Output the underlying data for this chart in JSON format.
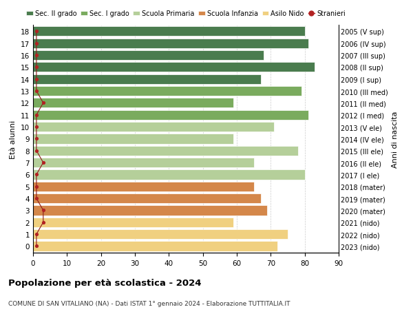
{
  "ages": [
    18,
    17,
    16,
    15,
    14,
    13,
    12,
    11,
    10,
    9,
    8,
    7,
    6,
    5,
    4,
    3,
    2,
    1,
    0
  ],
  "years": [
    "2005 (V sup)",
    "2006 (IV sup)",
    "2007 (III sup)",
    "2008 (II sup)",
    "2009 (I sup)",
    "2010 (III med)",
    "2011 (II med)",
    "2012 (I med)",
    "2013 (V ele)",
    "2014 (IV ele)",
    "2015 (III ele)",
    "2016 (II ele)",
    "2017 (I ele)",
    "2018 (mater)",
    "2019 (mater)",
    "2020 (mater)",
    "2021 (nido)",
    "2022 (nido)",
    "2023 (nido)"
  ],
  "bar_values": [
    80,
    81,
    68,
    83,
    67,
    79,
    59,
    81,
    71,
    59,
    78,
    65,
    80,
    65,
    67,
    69,
    59,
    75,
    72
  ],
  "bar_colors": [
    "#4a7c4e",
    "#4a7c4e",
    "#4a7c4e",
    "#4a7c4e",
    "#4a7c4e",
    "#7aab5e",
    "#7aab5e",
    "#7aab5e",
    "#b5cf9a",
    "#b5cf9a",
    "#b5cf9a",
    "#b5cf9a",
    "#b5cf9a",
    "#d4874a",
    "#d4874a",
    "#d4874a",
    "#f0d080",
    "#f0d080",
    "#f0d080"
  ],
  "stranieri_x": [
    1,
    1,
    1,
    1,
    1,
    1,
    3,
    1,
    1,
    1,
    1,
    3,
    1,
    1,
    1,
    3,
    3,
    1,
    1
  ],
  "legend_labels": [
    "Sec. II grado",
    "Sec. I grado",
    "Scuola Primaria",
    "Scuola Infanzia",
    "Asilo Nido",
    "Stranieri"
  ],
  "legend_colors": [
    "#4a7c4e",
    "#7aab5e",
    "#b5cf9a",
    "#d4874a",
    "#f0d080",
    "#b22222"
  ],
  "title": "Popolazione per età scolastica - 2024",
  "subtitle": "COMUNE DI SAN VITALIANO (NA) - Dati ISTAT 1° gennaio 2024 - Elaborazione TUTTITALIA.IT",
  "ylabel_left": "Età alunni",
  "ylabel_right": "Anni di nascita",
  "xlim": [
    0,
    90
  ],
  "xticks": [
    0,
    10,
    20,
    30,
    40,
    50,
    60,
    70,
    80,
    90
  ],
  "bar_height": 0.82,
  "bg_color": "#ffffff",
  "grid_color": "#cccccc",
  "stranieri_dot_color": "#b22222",
  "stranieri_line_color": "#8b1a1a"
}
